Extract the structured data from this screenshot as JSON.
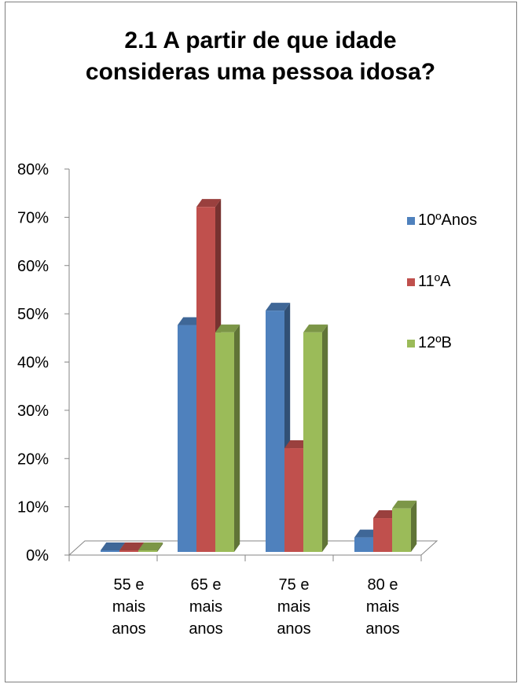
{
  "chart_data": {
    "type": "bar",
    "title_lines": [
      "2.1 A partir de que idade",
      "consideras uma pessoa idosa?"
    ],
    "categories": [
      [
        "55 e",
        "mais",
        "anos"
      ],
      [
        "65 e",
        "mais",
        "anos"
      ],
      [
        "75 e",
        "mais",
        "anos"
      ],
      [
        "80 e",
        "mais",
        "anos"
      ]
    ],
    "series": [
      {
        "name": "10ºAnos",
        "values": [
          0,
          47,
          50,
          3
        ],
        "color": "#4f81bd"
      },
      {
        "name": "11ºA",
        "values": [
          0,
          71.5,
          21.5,
          7
        ],
        "color": "#c0504d"
      },
      {
        "name": "12ºB",
        "values": [
          0,
          45.5,
          45.5,
          9
        ],
        "color": "#9bbb59"
      }
    ],
    "ylim": [
      0,
      80
    ],
    "yticks": [
      "0%",
      "10%",
      "20%",
      "30%",
      "40%",
      "50%",
      "60%",
      "70%",
      "80%"
    ],
    "legend_position": "right",
    "grid": false,
    "style": "3d-clustered-column"
  }
}
